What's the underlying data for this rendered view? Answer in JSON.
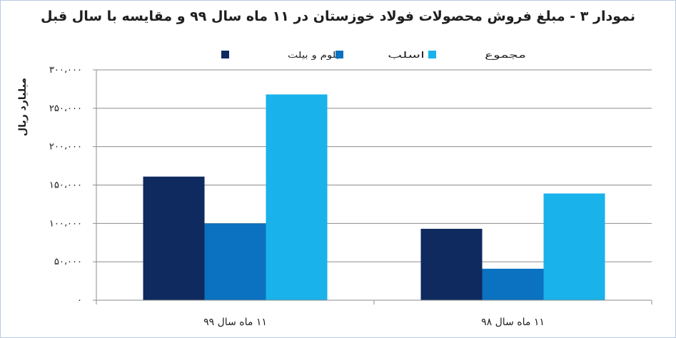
{
  "chart_data": {
    "type": "bar",
    "title": "نمودار ۳ - مبلغ فروش محصولات فولاد خوزستان در ۱۱ ماه سال ۹۹ و مقایسه با سال قبل",
    "xlabel": "",
    "ylabel": "میلیارد ریال",
    "ylim": [
      0,
      300000
    ],
    "y_ticks": [
      0,
      50000,
      100000,
      150000,
      200000,
      250000,
      300000
    ],
    "y_tick_labels": [
      "۰",
      "۵۰،۰۰۰",
      "۱۰۰،۰۰۰",
      "۱۵۰،۰۰۰",
      "۲۰۰،۰۰۰",
      "۲۵۰،۰۰۰",
      "۳۰۰،۰۰۰"
    ],
    "categories": [
      "۱۱ ماه سال ۹۹",
      "۱۱ ماه سال ۹۸"
    ],
    "series": [
      {
        "name": "بلوم و بیلت",
        "color": "#0e2a5e",
        "values": [
          161000,
          93000
        ]
      },
      {
        "name": "اسلب",
        "color": "#0a72c0",
        "values": [
          100000,
          41000
        ]
      },
      {
        "name": "مجموع",
        "color": "#19b2ea",
        "values": [
          268000,
          139000
        ]
      }
    ],
    "grid": true,
    "legend_position": "top"
  }
}
